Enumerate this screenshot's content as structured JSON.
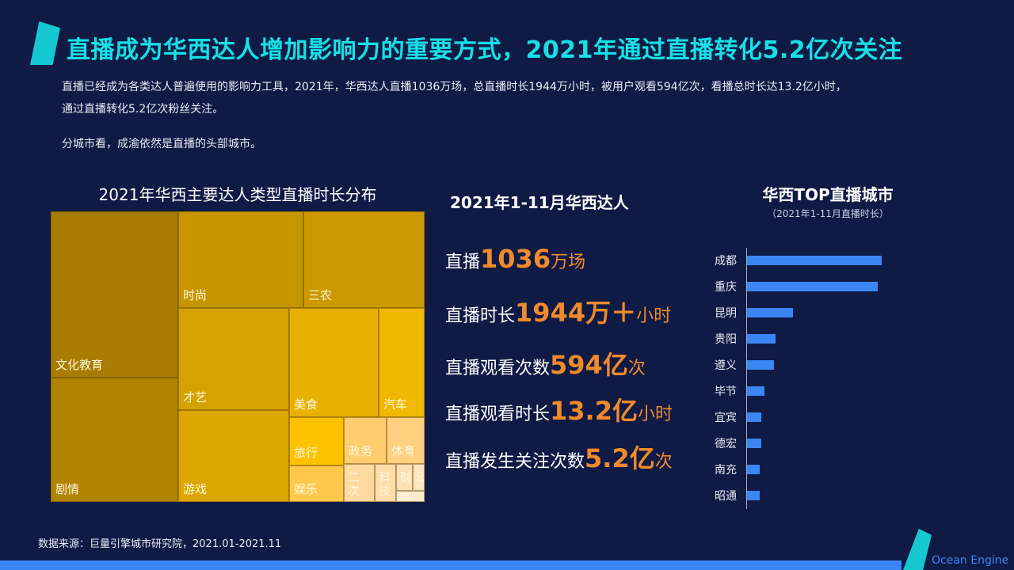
{
  "header": {
    "title": "直播成为华西达人增加影响力的重要方式，2021年通过直播转化5.2亿次关注"
  },
  "intro": {
    "line1": "直播已经成为各类达人普遍使用的影响力工具，2021年，华西达人直播1036万场，总直播时长1944万小时，被用户观看594亿次，看播总时长达13.2亿小时，",
    "line2": "通过直播转化5.2亿次粉丝关注。",
    "line3": "分城市看，成渝依然是直播的头部城市。"
  },
  "treemap": {
    "title": "2021年华西主要达人类型直播时长分布",
    "cells": [
      "文化教育",
      "剧情",
      "时尚",
      "三农",
      "才艺",
      "游戏",
      "美食",
      "汽车",
      "旅行",
      "娱乐",
      "政务",
      "体育",
      "二次",
      "科技",
      "财",
      "动",
      "亲"
    ]
  },
  "stats": {
    "title": "2021年1-11月华西达人",
    "items": [
      {
        "label": "直播",
        "value": "1036",
        "unit": "万场"
      },
      {
        "label": "直播时长",
        "value": "1944万＋",
        "unit": "小时"
      },
      {
        "label": "直播观看次数",
        "value": "594亿",
        "unit": "次"
      },
      {
        "label": "直播观看时长",
        "value": "13.2亿",
        "unit": "小时"
      },
      {
        "label": "直播发生关注次数",
        "value": "5.2亿",
        "unit": "次"
      }
    ]
  },
  "chart_data": {
    "type": "bar",
    "orientation": "horizontal",
    "title": "华西TOP直播城市",
    "subtitle": "（2021年1-11月直播时长）",
    "categories": [
      "成都",
      "重庆",
      "昆明",
      "贵阳",
      "遵义",
      "毕节",
      "宜宾",
      "德宏",
      "南充",
      "昭通"
    ],
    "values": [
      170,
      165,
      58,
      36,
      34,
      22,
      18,
      18,
      16,
      16
    ],
    "color": "#3a86f5",
    "grid": false
  },
  "footer": {
    "source": "数据来源：巨量引擎城市研究院，2021.01-2021.11",
    "brand": "Ocean Engine"
  }
}
